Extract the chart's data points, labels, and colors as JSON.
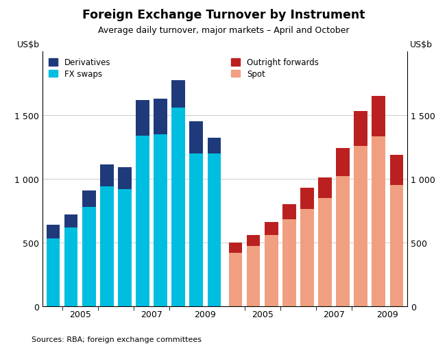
{
  "title": "Foreign Exchange Turnover by Instrument",
  "subtitle": "Average daily turnover, major markets – April and October",
  "ylabel_left": "US$b",
  "ylabel_right": "US$b",
  "source": "Sources: RBA; foreign exchange committees",
  "left_fx_swaps": [
    530,
    620,
    780,
    940,
    920,
    1340,
    1350,
    1560,
    1200,
    1200
  ],
  "left_derivatives": [
    110,
    100,
    130,
    170,
    170,
    280,
    280,
    215,
    250,
    120
  ],
  "right_spot": [
    420,
    470,
    560,
    680,
    760,
    850,
    1020,
    1260,
    1330,
    950
  ],
  "right_outright_fwd": [
    80,
    90,
    100,
    120,
    170,
    160,
    220,
    270,
    320,
    240
  ],
  "left_xtick_pos": [
    1.0,
    3.5,
    6.5,
    8.5
  ],
  "left_xtick_labels": [
    "2005",
    "2007",
    "",
    "2009"
  ],
  "right_xtick_pos": [
    1.0,
    3.5,
    6.5,
    8.5
  ],
  "right_xtick_labels": [
    "2005",
    "2007",
    "",
    "2009"
  ],
  "color_fx_swaps": "#00BEDF",
  "color_derivatives": "#1F3A7A",
  "color_spot": "#F0A080",
  "color_outright": "#BB2020",
  "ylim": [
    0,
    2000
  ],
  "yticks": [
    0,
    500,
    1000,
    1500
  ],
  "ytick_labels": [
    "0",
    "500",
    "1 000",
    "1 500"
  ],
  "bar_width": 0.75
}
